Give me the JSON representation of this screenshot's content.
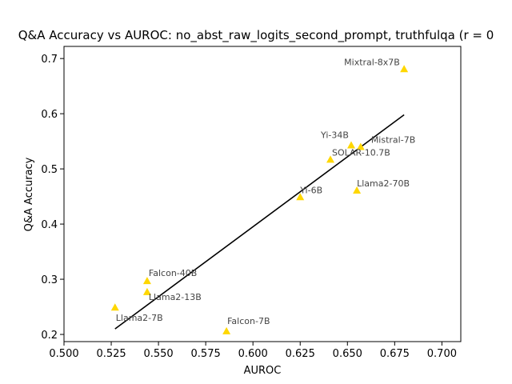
{
  "chart_data": {
    "type": "scatter",
    "title": "Q&A Accuracy vs AUROC: no_abst_raw_logits_second_prompt, truthfulqa (r = 0",
    "xlabel": "AUROC",
    "ylabel": "Q&A Accuracy",
    "xlim": [
      0.5,
      0.71
    ],
    "ylim": [
      0.187,
      0.722
    ],
    "xticks": [
      "0.500",
      "0.525",
      "0.550",
      "0.575",
      "0.600",
      "0.625",
      "0.650",
      "0.675",
      "0.700"
    ],
    "yticks": [
      "0.2",
      "0.3",
      "0.4",
      "0.5",
      "0.6",
      "0.7"
    ],
    "marker": "triangle",
    "marker_color": "#FFD700",
    "fit_line_color": "#000000",
    "grid": false,
    "points": [
      {
        "label": "Mixtral-8x7B",
        "x": 0.68,
        "y": 0.681
      },
      {
        "label": "Yi-34B",
        "x": 0.652,
        "y": 0.543
      },
      {
        "label": "Mistral-7B",
        "x": 0.657,
        "y": 0.54
      },
      {
        "label": "SOLAR-10.7B",
        "x": 0.641,
        "y": 0.517
      },
      {
        "label": "Llama2-70B",
        "x": 0.655,
        "y": 0.461
      },
      {
        "label": "Yi-6B",
        "x": 0.625,
        "y": 0.449
      },
      {
        "label": "Falcon-40B",
        "x": 0.544,
        "y": 0.297
      },
      {
        "label": "Llama2-13B",
        "x": 0.544,
        "y": 0.277
      },
      {
        "label": "Llama2-7B",
        "x": 0.527,
        "y": 0.249
      },
      {
        "label": "Falcon-7B",
        "x": 0.586,
        "y": 0.206
      }
    ],
    "fit_line": {
      "x": [
        0.527,
        0.68
      ],
      "y": [
        0.21,
        0.598
      ]
    }
  }
}
